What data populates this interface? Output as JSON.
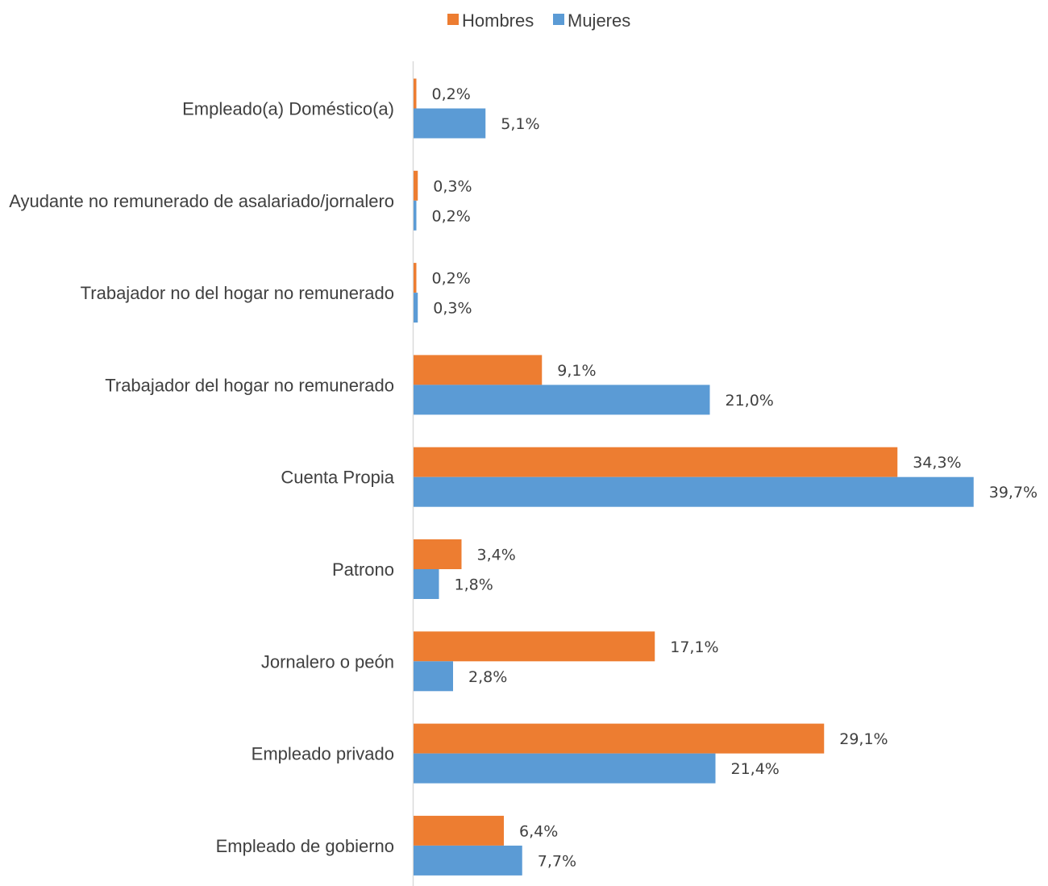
{
  "chart_data": {
    "type": "bar",
    "orientation": "horizontal",
    "categories": [
      "Empleado(a) Doméstico(a)",
      "Ayudante no remunerado de asalariado/jornalero",
      "Trabajador no del hogar no remunerado",
      "Trabajador del hogar no remunerado",
      "Cuenta Propia",
      "Patrono",
      "Jornalero o peón",
      "Empleado privado",
      "Empleado de gobierno"
    ],
    "series": [
      {
        "name": "Hombres",
        "color": "#ED7D31",
        "values": [
          0.2,
          0.3,
          0.2,
          9.1,
          34.3,
          3.4,
          17.1,
          29.1,
          6.4
        ],
        "labels": [
          "0,2%",
          "0,3%",
          "0,2%",
          "9,1%",
          "34,3%",
          "3,4%",
          "17,1%",
          "29,1%",
          "6,4%"
        ]
      },
      {
        "name": "Mujeres",
        "color": "#5B9BD5",
        "values": [
          5.1,
          0.2,
          0.3,
          21.0,
          39.7,
          1.8,
          2.8,
          21.4,
          7.7
        ],
        "labels": [
          "5,1%",
          "0,2%",
          "0,3%",
          "21,0%",
          "39,7%",
          "1,8%",
          "2,8%",
          "21,4%",
          "7,7%"
        ]
      }
    ],
    "xlim": [
      0,
      40
    ],
    "legend_position": "top-center",
    "grid": false,
    "axis_color": "#D9D9D9",
    "text_color": "#404040"
  }
}
